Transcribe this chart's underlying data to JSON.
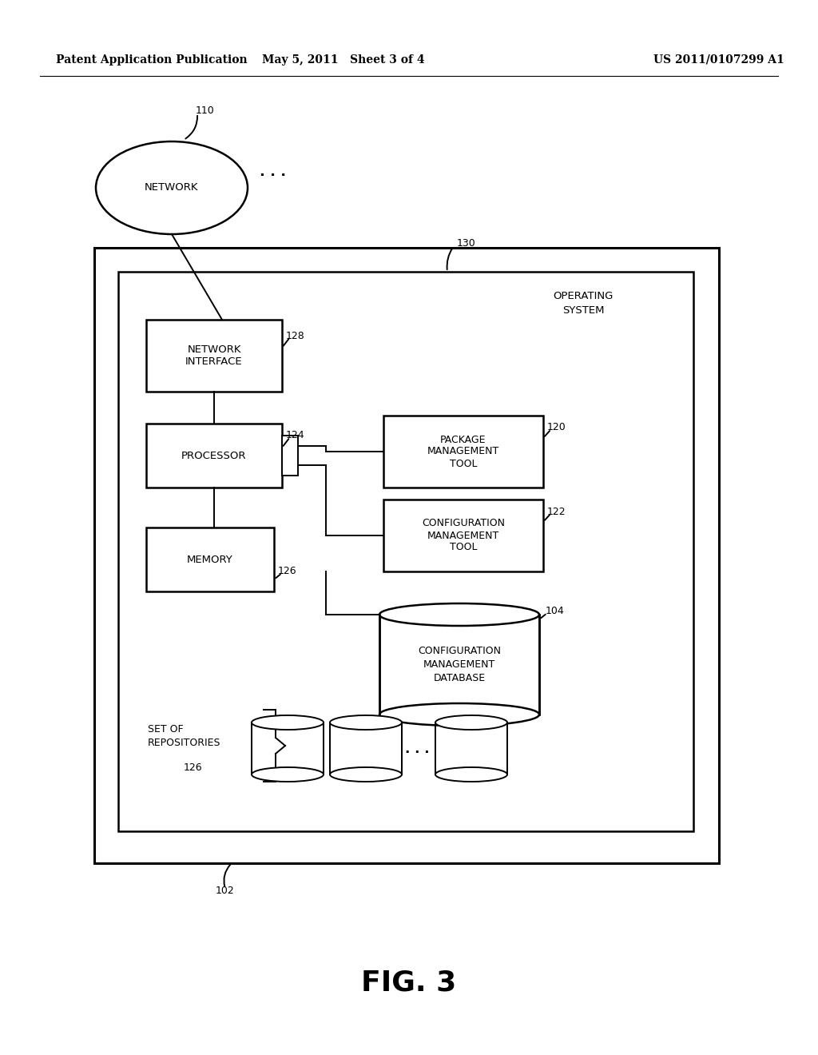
{
  "bg_color": "#ffffff",
  "header_left": "Patent Application Publication",
  "header_mid": "May 5, 2011   Sheet 3 of 4",
  "header_right": "US 2011/0107299 A1",
  "fig_label": "FIG. 3"
}
